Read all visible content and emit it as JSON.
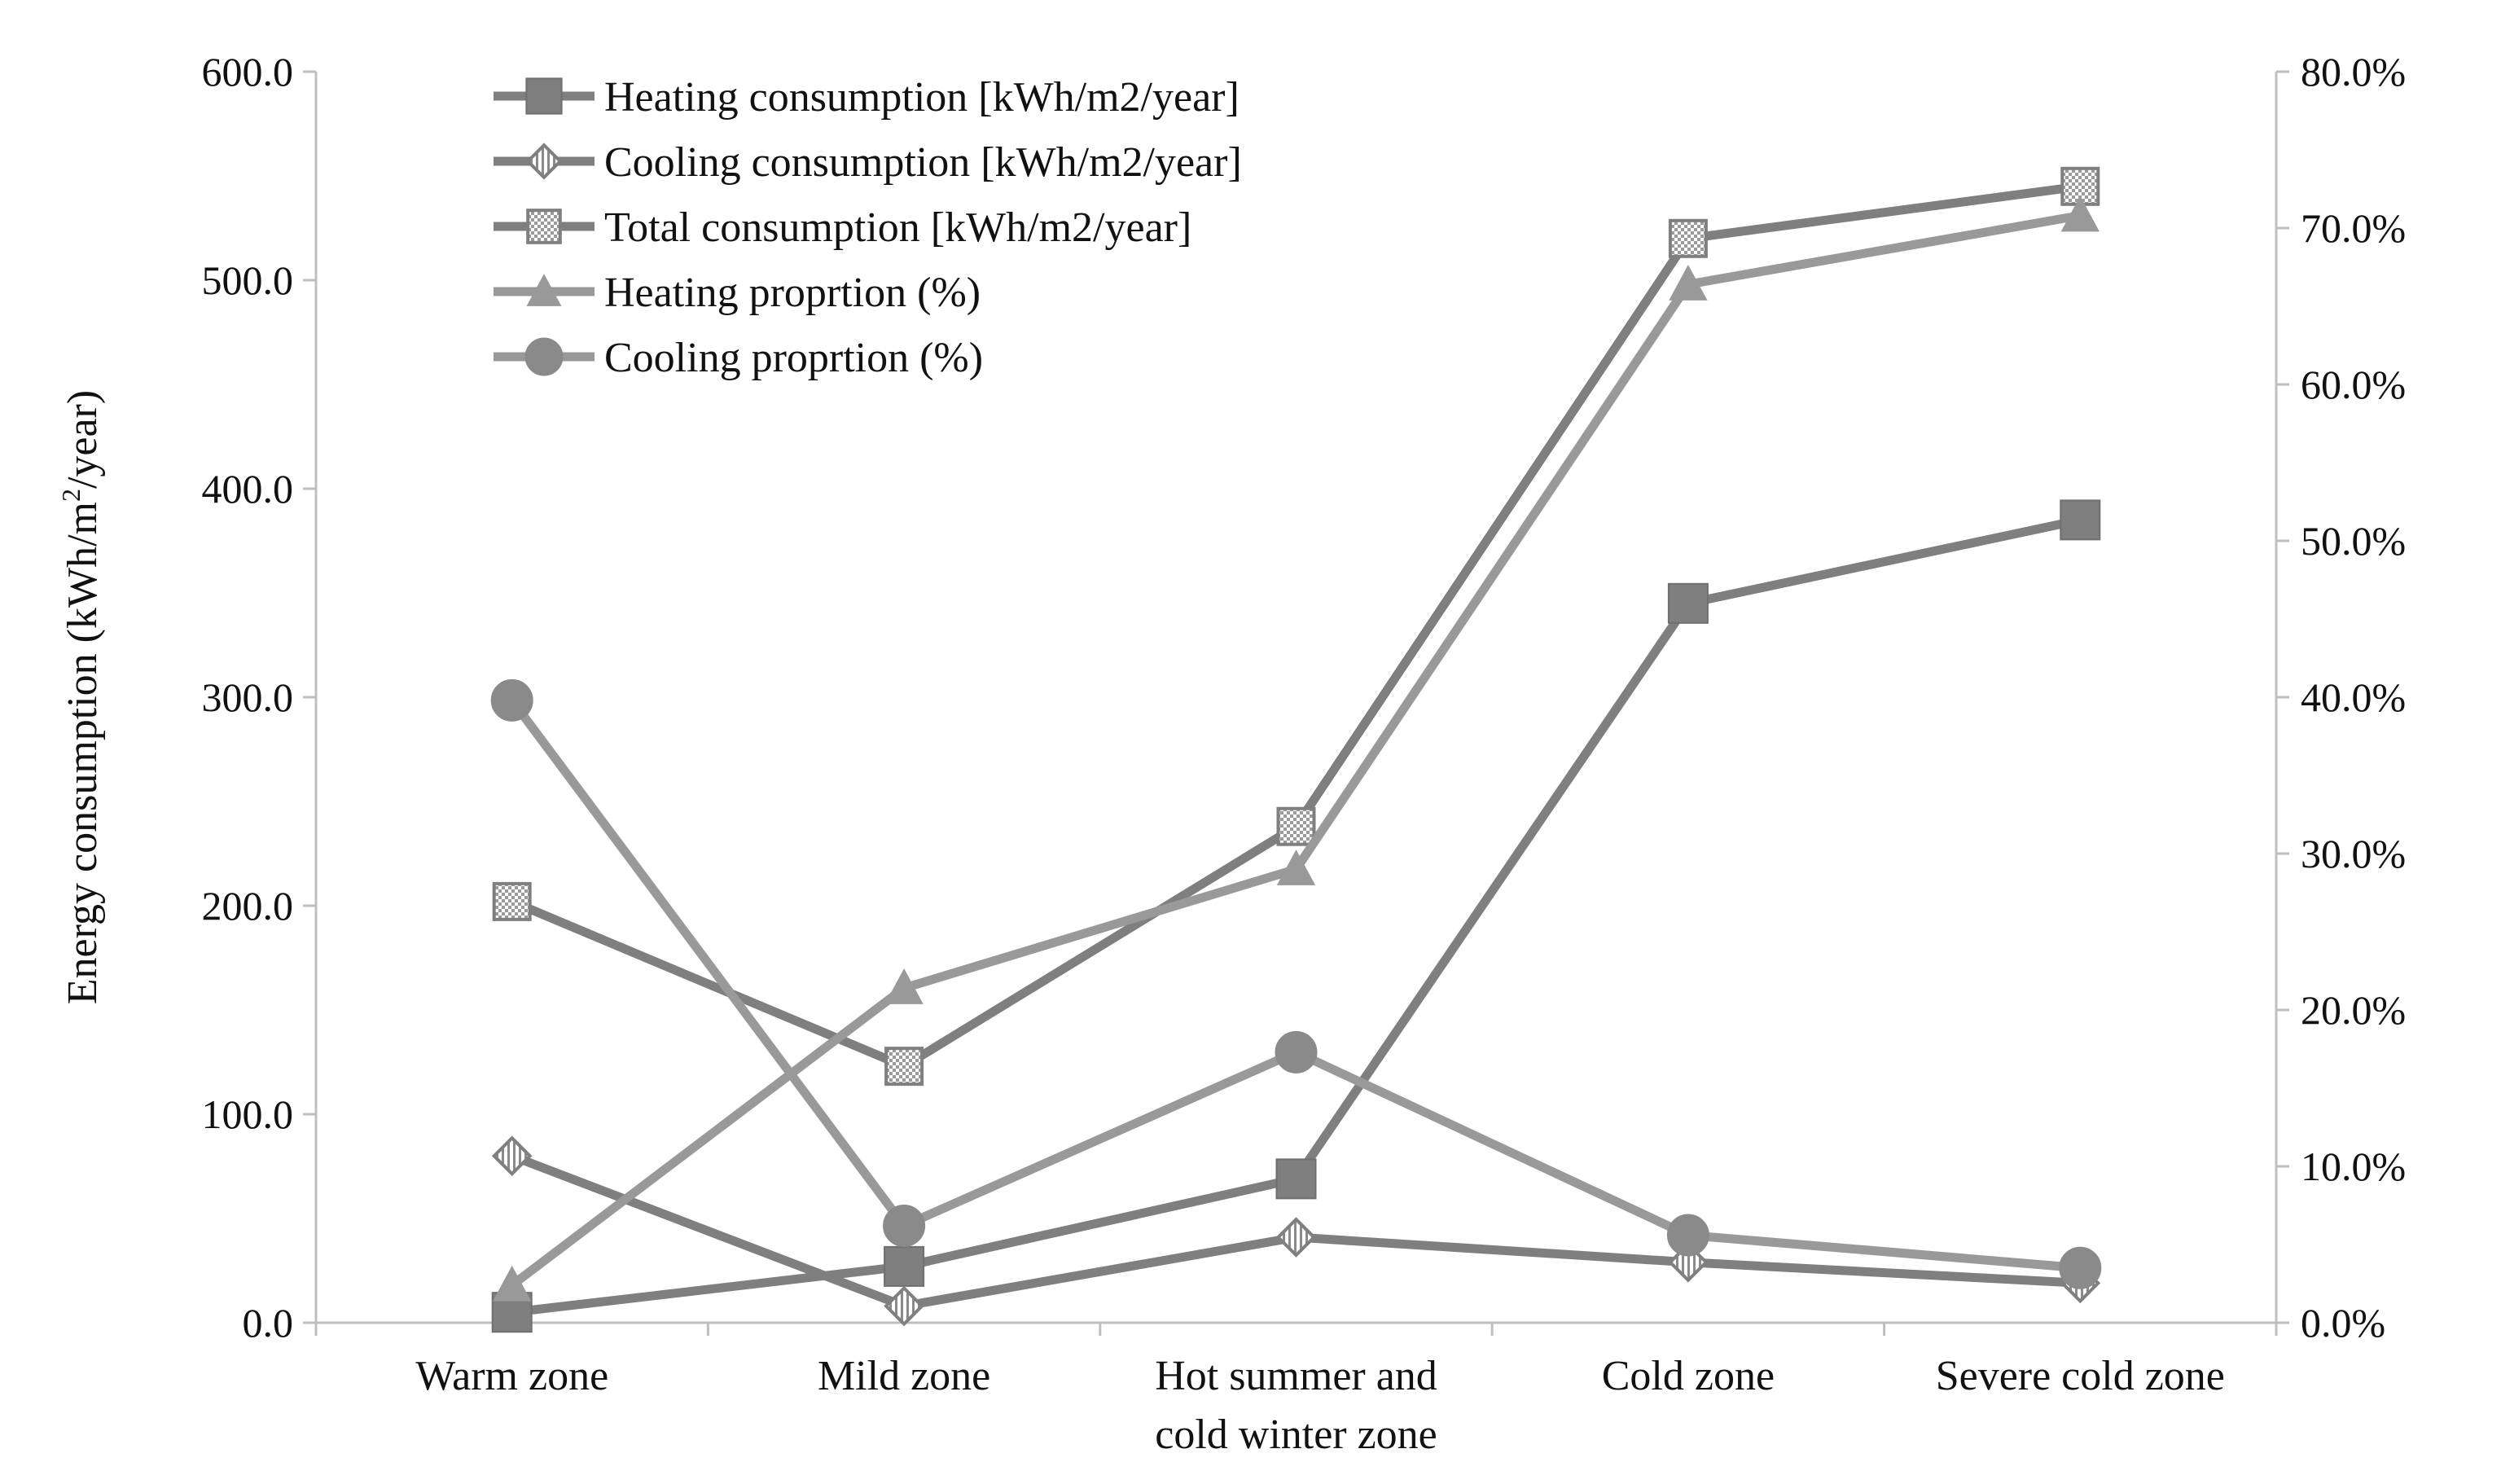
{
  "chart_data": {
    "type": "line",
    "title": "",
    "xlabel": "",
    "ylabel": "Energy consumption (kWh/m²/year)",
    "ylabel_parts": {
      "before": "Energy consumption (kWh/m",
      "sup": "2",
      "after": "/year)"
    },
    "categories": [
      [
        "Warm zone"
      ],
      [
        "Mild zone"
      ],
      [
        "Hot summer and",
        "cold winter zone"
      ],
      [
        "Cold zone"
      ],
      [
        "Severe cold zone"
      ]
    ],
    "left_axis": {
      "min": 0,
      "max": 600,
      "step": 100,
      "ticks": [
        "0.0",
        "100.0",
        "200.0",
        "300.0",
        "400.0",
        "500.0",
        "600.0"
      ]
    },
    "right_axis": {
      "min": 0,
      "max": 80,
      "step": 10,
      "ticks": [
        "0.0%",
        "10.0%",
        "20.0%",
        "30.0%",
        "40.0%",
        "50.0%",
        "60.0%",
        "70.0%",
        "80.0%"
      ]
    },
    "legend_position": "top-left",
    "series": [
      {
        "name": "Heating consumption [kWh/m2/year]",
        "axis": "left",
        "marker": "square",
        "color": "#7f7f7f",
        "values": [
          5,
          27,
          69,
          345,
          385
        ]
      },
      {
        "name": "Cooling consumption [kWh/m2/year]",
        "axis": "left",
        "marker": "diamond",
        "color": "#7f7f7f",
        "values": [
          80,
          8,
          41,
          29,
          19
        ]
      },
      {
        "name": "Total consumption [kWh/m2/year]",
        "axis": "left",
        "marker": "checker",
        "color": "#7f7f7f",
        "values": [
          202,
          123,
          238,
          520,
          545
        ]
      },
      {
        "name": "Heating proprtion (%)",
        "axis": "right",
        "marker": "triangle",
        "color": "#999999",
        "values": [
          2.4,
          21.4,
          29.0,
          66.4,
          70.8
        ]
      },
      {
        "name": "Cooling proprtion (%)",
        "axis": "right",
        "marker": "circle",
        "color": "#999999",
        "values": [
          39.8,
          6.2,
          17.3,
          5.6,
          3.5
        ]
      }
    ]
  }
}
